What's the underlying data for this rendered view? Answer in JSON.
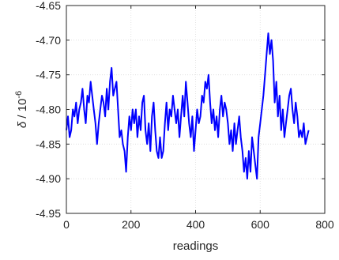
{
  "chart_data": {
    "type": "line",
    "xlabel": "readings",
    "ylabel_symbol": "δ",
    "ylabel_rest": " / 10",
    "ylabel_exp": "-6",
    "xlim": [
      0,
      800
    ],
    "ylim": [
      -4.95,
      -4.65
    ],
    "xticks": [
      0,
      200,
      400,
      600,
      800
    ],
    "xtick_labels": [
      "0",
      "200",
      "400",
      "600",
      "800"
    ],
    "yticks": [
      -4.95,
      -4.9,
      -4.85,
      -4.8,
      -4.75,
      -4.7,
      -4.65
    ],
    "ytick_labels": [
      "-4.95",
      "-4.90",
      "-4.85",
      "-4.80",
      "-4.75",
      "-4.70",
      "-4.65"
    ],
    "grid": true,
    "series": [
      {
        "color": "#0000ff",
        "x": [
          0,
          5,
          10,
          15,
          20,
          25,
          30,
          35,
          40,
          45,
          50,
          55,
          60,
          65,
          70,
          75,
          80,
          85,
          90,
          95,
          100,
          105,
          110,
          115,
          120,
          125,
          130,
          135,
          140,
          145,
          150,
          155,
          160,
          165,
          170,
          175,
          180,
          185,
          190,
          195,
          200,
          205,
          210,
          215,
          220,
          225,
          230,
          235,
          240,
          245,
          250,
          255,
          260,
          265,
          270,
          275,
          280,
          285,
          290,
          295,
          300,
          305,
          310,
          315,
          320,
          325,
          330,
          335,
          340,
          345,
          350,
          355,
          360,
          365,
          370,
          375,
          380,
          385,
          390,
          395,
          400,
          405,
          410,
          415,
          420,
          425,
          430,
          435,
          440,
          445,
          450,
          455,
          460,
          465,
          470,
          475,
          480,
          485,
          490,
          495,
          500,
          505,
          510,
          515,
          520,
          525,
          530,
          535,
          540,
          545,
          550,
          555,
          560,
          565,
          570,
          575,
          580,
          585,
          590,
          595,
          600,
          605,
          610,
          615,
          620,
          625,
          630,
          635,
          640,
          645,
          650,
          655,
          660,
          665,
          670,
          675,
          680,
          685,
          690,
          695,
          700,
          705,
          710,
          715,
          720,
          725,
          730,
          735,
          740,
          745,
          750
        ],
        "y": [
          -4.83,
          -4.81,
          -4.84,
          -4.83,
          -4.8,
          -4.81,
          -4.79,
          -4.82,
          -4.8,
          -4.79,
          -4.77,
          -4.8,
          -4.82,
          -4.78,
          -4.79,
          -4.76,
          -4.78,
          -4.8,
          -4.82,
          -4.85,
          -4.82,
          -4.8,
          -4.78,
          -4.79,
          -4.81,
          -4.77,
          -4.8,
          -4.76,
          -4.74,
          -4.78,
          -4.77,
          -4.76,
          -4.8,
          -4.84,
          -4.83,
          -4.85,
          -4.86,
          -4.89,
          -4.84,
          -4.81,
          -4.83,
          -4.8,
          -4.82,
          -4.8,
          -4.84,
          -4.81,
          -4.83,
          -4.79,
          -4.78,
          -4.83,
          -4.85,
          -4.82,
          -4.86,
          -4.81,
          -4.79,
          -4.83,
          -4.86,
          -4.87,
          -4.84,
          -4.87,
          -4.86,
          -4.82,
          -4.79,
          -4.83,
          -4.8,
          -4.81,
          -4.78,
          -4.8,
          -4.82,
          -4.8,
          -4.84,
          -4.81,
          -4.78,
          -4.81,
          -4.76,
          -4.79,
          -4.82,
          -4.84,
          -4.81,
          -4.86,
          -4.83,
          -4.8,
          -4.82,
          -4.81,
          -4.78,
          -4.79,
          -4.76,
          -4.77,
          -4.75,
          -4.79,
          -4.82,
          -4.8,
          -4.83,
          -4.81,
          -4.84,
          -4.8,
          -4.78,
          -4.81,
          -4.79,
          -4.8,
          -4.82,
          -4.85,
          -4.83,
          -4.86,
          -4.82,
          -4.85,
          -4.83,
          -4.81,
          -4.84,
          -4.86,
          -4.89,
          -4.87,
          -4.9,
          -4.86,
          -4.89,
          -4.84,
          -4.86,
          -4.88,
          -4.9,
          -4.84,
          -4.82,
          -4.8,
          -4.78,
          -4.75,
          -4.72,
          -4.69,
          -4.72,
          -4.7,
          -4.73,
          -4.79,
          -4.76,
          -4.81,
          -4.78,
          -4.83,
          -4.8,
          -4.84,
          -4.82,
          -4.8,
          -4.78,
          -4.77,
          -4.8,
          -4.82,
          -4.79,
          -4.81,
          -4.84,
          -4.83,
          -4.84,
          -4.82,
          -4.85,
          -4.84,
          -4.83
        ]
      }
    ]
  }
}
